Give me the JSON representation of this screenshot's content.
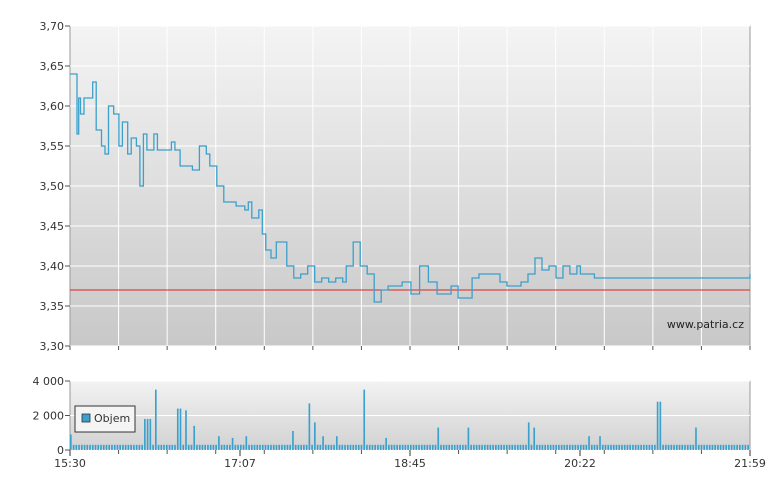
{
  "chart_data": [
    {
      "type": "line",
      "title": "",
      "xlabel": "",
      "ylabel": "",
      "ylim": [
        3.3,
        3.7
      ],
      "y_ticks": [
        "3,30",
        "3,35",
        "3,40",
        "3,45",
        "3,50",
        "3,55",
        "3,60",
        "3,65",
        "3,70"
      ],
      "y_tick_values": [
        3.3,
        3.35,
        3.4,
        3.45,
        3.5,
        3.55,
        3.6,
        3.65,
        3.7
      ],
      "x_ticks": [
        "15:30",
        "17:07",
        "18:45",
        "20:22",
        "21:59"
      ],
      "grid": true,
      "reference_line": {
        "value": 3.37,
        "color": "#dd2222"
      },
      "watermark": "www.patria.cz",
      "line_color": "#3aa0cc",
      "series": [
        {
          "x": [
            "15:30",
            "15:33",
            "15:34",
            "15:35",
            "15:36",
            "15:38",
            "15:40",
            "15:43",
            "15:45",
            "15:48",
            "15:50",
            "15:52",
            "15:55",
            "15:58",
            "16:00",
            "16:03",
            "16:05",
            "16:08",
            "16:10",
            "16:12",
            "16:14",
            "16:16",
            "16:18",
            "16:20",
            "16:23",
            "16:25",
            "16:28",
            "16:30",
            "16:33",
            "16:36",
            "16:40",
            "16:44",
            "16:48",
            "16:50",
            "16:54",
            "16:58",
            "17:02",
            "17:05",
            "17:07",
            "17:10",
            "17:12",
            "17:14",
            "17:16",
            "17:18",
            "17:20",
            "17:22",
            "17:25",
            "17:28",
            "17:30",
            "17:34",
            "17:38",
            "17:42",
            "17:46",
            "17:50",
            "17:54",
            "17:58",
            "18:02",
            "18:06",
            "18:08",
            "18:12",
            "18:16",
            "18:20",
            "18:24",
            "18:28",
            "18:32",
            "18:36",
            "18:40",
            "18:45",
            "18:50",
            "18:55",
            "19:00",
            "19:04",
            "19:08",
            "19:12",
            "19:16",
            "19:20",
            "19:24",
            "19:28",
            "19:32",
            "19:34",
            "19:36",
            "19:40",
            "19:44",
            "19:48",
            "19:52",
            "19:56",
            "20:00",
            "20:04",
            "20:08",
            "20:12",
            "20:16",
            "20:20",
            "20:22",
            "20:26",
            "20:30",
            "20:36",
            "20:42",
            "20:48",
            "20:54",
            "21:00",
            "21:04",
            "21:08",
            "21:12",
            "21:16",
            "21:20",
            "21:24",
            "21:28",
            "21:32",
            "21:36",
            "21:40",
            "21:44",
            "21:48",
            "21:52",
            "21:56",
            "21:59"
          ],
          "y": [
            3.64,
            3.64,
            3.565,
            3.61,
            3.59,
            3.61,
            3.61,
            3.63,
            3.57,
            3.55,
            3.54,
            3.6,
            3.59,
            3.55,
            3.58,
            3.54,
            3.56,
            3.55,
            3.5,
            3.565,
            3.545,
            3.545,
            3.565,
            3.545,
            3.545,
            3.545,
            3.555,
            3.545,
            3.525,
            3.525,
            3.52,
            3.55,
            3.54,
            3.525,
            3.5,
            3.48,
            3.48,
            3.475,
            3.475,
            3.47,
            3.48,
            3.46,
            3.46,
            3.47,
            3.44,
            3.42,
            3.41,
            3.43,
            3.43,
            3.4,
            3.385,
            3.39,
            3.4,
            3.38,
            3.385,
            3.38,
            3.385,
            3.38,
            3.4,
            3.43,
            3.4,
            3.39,
            3.355,
            3.37,
            3.375,
            3.375,
            3.38,
            3.365,
            3.4,
            3.38,
            3.365,
            3.365,
            3.375,
            3.36,
            3.36,
            3.385,
            3.39,
            3.39,
            3.39,
            3.39,
            3.38,
            3.375,
            3.375,
            3.38,
            3.39,
            3.41,
            3.395,
            3.4,
            3.385,
            3.4,
            3.39,
            3.4,
            3.39,
            3.39,
            3.385,
            3.385,
            3.385,
            3.385,
            3.385,
            3.385,
            3.385,
            3.385,
            3.385,
            3.385,
            3.385,
            3.385,
            3.385,
            3.385,
            3.385,
            3.385,
            3.385,
            3.385,
            3.385,
            3.385,
            3.39
          ]
        }
      ]
    },
    {
      "type": "bar",
      "title": "",
      "xlabel": "",
      "ylabel": "",
      "ylim": [
        0,
        4000
      ],
      "y_ticks": [
        "0",
        "2 000",
        "4 000"
      ],
      "y_tick_values": [
        0,
        2000,
        4000
      ],
      "x_ticks": [
        "15:30",
        "17:07",
        "18:45",
        "20:22",
        "21:59"
      ],
      "grid": true,
      "legend": {
        "label": "Objem",
        "position": "top-left"
      },
      "bar_color": "#3aa0cc",
      "series": [
        {
          "name": "Objem",
          "values": [
            900,
            300,
            300,
            300,
            300,
            300,
            300,
            300,
            300,
            300,
            300,
            300,
            300,
            300,
            300,
            300,
            300,
            300,
            300,
            300,
            300,
            300,
            300,
            300,
            300,
            300,
            300,
            1800,
            1800,
            1800,
            300,
            3500,
            300,
            300,
            300,
            300,
            300,
            300,
            300,
            2400,
            2400,
            300,
            2300,
            300,
            300,
            1400,
            300,
            300,
            300,
            300,
            300,
            300,
            300,
            300,
            800,
            300,
            300,
            300,
            300,
            700,
            300,
            300,
            300,
            300,
            800,
            300,
            300,
            300,
            300,
            300,
            300,
            300,
            300,
            300,
            300,
            300,
            300,
            300,
            300,
            300,
            300,
            1100,
            300,
            300,
            300,
            300,
            300,
            2700,
            300,
            1600,
            300,
            300,
            800,
            300,
            300,
            300,
            300,
            800,
            300,
            300,
            300,
            300,
            300,
            300,
            300,
            300,
            300,
            3500,
            300,
            300,
            300,
            300,
            300,
            300,
            300,
            700,
            300,
            300,
            300,
            300,
            300,
            300,
            300,
            300,
            300,
            300,
            300,
            300,
            300,
            300,
            300,
            300,
            300,
            300,
            1300,
            300,
            300,
            300,
            300,
            300,
            300,
            300,
            300,
            300,
            300,
            1300,
            300,
            300,
            300,
            300,
            300,
            300,
            300,
            300,
            300,
            300,
            300,
            300,
            300,
            300,
            300,
            300,
            300,
            300,
            300,
            300,
            300,
            1600,
            300,
            1300,
            300,
            300,
            300,
            300,
            300,
            300,
            300,
            300,
            300,
            300,
            300,
            300,
            300,
            300,
            300,
            300,
            300,
            300,
            300,
            800,
            300,
            300,
            300,
            800,
            300,
            300,
            300,
            300,
            300,
            300,
            300,
            300,
            300,
            300,
            300,
            300,
            300,
            300,
            300,
            300,
            300,
            300,
            300,
            300,
            2800,
            2800,
            300,
            300,
            300,
            300,
            300,
            300,
            300,
            300,
            300,
            300,
            300,
            300,
            1300,
            300,
            300,
            300,
            300,
            300,
            300,
            300,
            300,
            300,
            300,
            300,
            300,
            300,
            300,
            300,
            300,
            300,
            300,
            300
          ]
        }
      ]
    }
  ]
}
